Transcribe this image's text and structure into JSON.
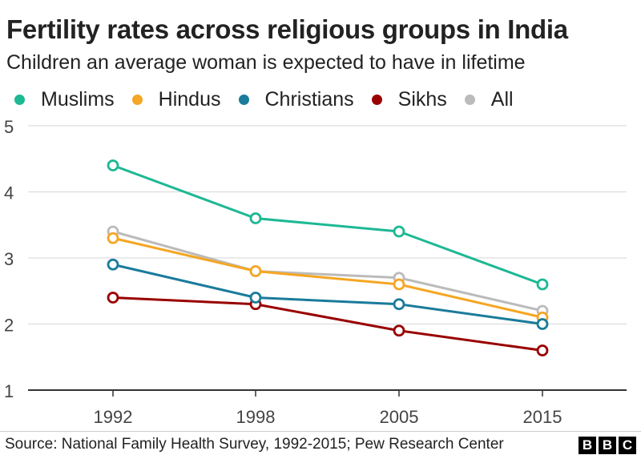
{
  "chart_data": {
    "type": "line",
    "title": "Fertility rates across religious groups in India",
    "subtitle": "Children an average woman is expected to have in lifetime",
    "categories": [
      "1992",
      "1998",
      "2005",
      "2015"
    ],
    "ylim": [
      1,
      5
    ],
    "yticks": [
      "1",
      "2",
      "3",
      "4",
      "5"
    ],
    "grid": true,
    "legend_position": "top-left",
    "series": [
      {
        "name": "Muslims",
        "color": "#1db894",
        "values": [
          4.4,
          3.6,
          3.4,
          2.6
        ]
      },
      {
        "name": "Hindus",
        "color": "#f5a623",
        "values": [
          3.3,
          2.8,
          2.6,
          2.1
        ]
      },
      {
        "name": "Christians",
        "color": "#1a7b9b",
        "values": [
          2.9,
          2.4,
          2.3,
          2.0
        ]
      },
      {
        "name": "Sikhs",
        "color": "#990000",
        "values": [
          2.4,
          2.3,
          1.9,
          1.6
        ]
      },
      {
        "name": "All",
        "color": "#bbbbbb",
        "values": [
          3.4,
          2.8,
          2.7,
          2.2
        ]
      }
    ]
  },
  "footer": {
    "source": "Source: National Family Health Survey, 1992-2015; Pew Research Center",
    "logo_letters": [
      "B",
      "B",
      "C"
    ]
  }
}
